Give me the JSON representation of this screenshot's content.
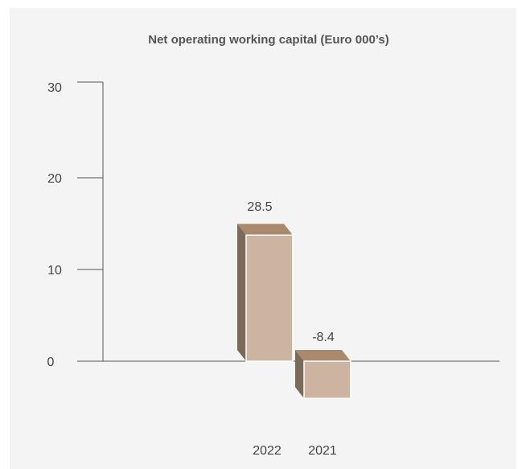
{
  "chart_data": {
    "type": "bar",
    "title": "Net operating working capital (Euro 000’s)",
    "categories": [
      "2022",
      "2021"
    ],
    "values": [
      28.5,
      -8.4
    ],
    "data_labels": [
      "28.5",
      "-8.4"
    ],
    "y_ticks": [
      "0",
      "10",
      "20",
      "30"
    ],
    "ylim": [
      -8.4,
      30
    ],
    "xlabel": "",
    "ylabel": "",
    "grid": false,
    "legend": "none",
    "colors": {
      "front": "#cdb4a0",
      "top": "#a98a6d",
      "side": "#7a6a5a",
      "edge": "#ffffff"
    }
  }
}
